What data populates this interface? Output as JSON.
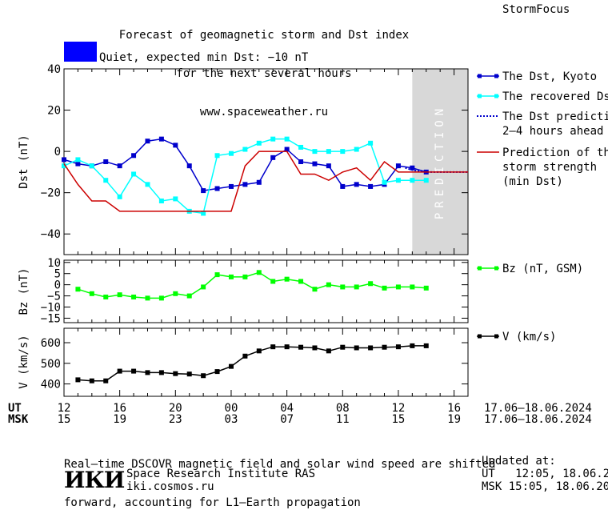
{
  "header": {
    "title_lines": [
      "Forecast of geomagnetic storm and Dst index",
      "for the next several hours",
      "www.spaceweather.ru"
    ],
    "brand": "StormFocus",
    "status_label": "Quiet, expected min Dst: −10 nT",
    "status_color": "#0000ff"
  },
  "chart_data": [
    {
      "type": "line",
      "ylabel": "Dst (nT)",
      "ylim": [
        -50,
        40
      ],
      "yticks": [
        -40,
        -20,
        0,
        20,
        40
      ],
      "ytick_labels": [
        "−40",
        "−20",
        "0",
        "20",
        "40"
      ],
      "xlim": [
        12,
        41
      ],
      "prediction_band": {
        "x": [
          37,
          41
        ],
        "label": "PREDICTION",
        "color": "#d8d8d8"
      },
      "series": [
        {
          "name": "The Dst, Kyoto",
          "color": "#0000cc",
          "marker": "square",
          "x": [
            12,
            13,
            14,
            15,
            16,
            17,
            18,
            19,
            20,
            21,
            22,
            23,
            24,
            25,
            26,
            27,
            28,
            29,
            30,
            31,
            32,
            33,
            34,
            35,
            36,
            37,
            38
          ],
          "y": [
            -4,
            -6,
            -7,
            -5,
            -7,
            -2,
            5,
            6,
            3,
            -7,
            -19,
            -18,
            -17,
            -16,
            -15,
            -3,
            1,
            -5,
            -6,
            -7,
            -17,
            -16,
            -17,
            -16,
            -7,
            -8,
            -10
          ]
        },
        {
          "name": "The recovered Dst",
          "color": "#00ffff",
          "marker": "square",
          "x": [
            12,
            13,
            14,
            15,
            16,
            17,
            18,
            19,
            20,
            21,
            22,
            23,
            24,
            25,
            26,
            27,
            28,
            29,
            30,
            31,
            32,
            33,
            34,
            35,
            36,
            37,
            38
          ],
          "y": [
            -7,
            -4,
            -7,
            -14,
            -22,
            -11,
            -16,
            -24,
            -23,
            -29,
            -30,
            -2,
            -1,
            1,
            4,
            6,
            6,
            2,
            0,
            0,
            0,
            1,
            4,
            -15,
            -14,
            -14,
            -14
          ]
        },
        {
          "name": "The Dst prediction 2–4 hours ahead",
          "color": "#0000cc",
          "style": "dotted",
          "x": [
            36.5,
            37,
            38,
            39,
            40,
            41
          ],
          "y": [
            -8,
            -9,
            -10,
            -10,
            -10,
            -10
          ]
        },
        {
          "name": "Prediction of the storm strength (min Dst)",
          "color": "#cc0000",
          "x": [
            12,
            13,
            14,
            15,
            16,
            17,
            18,
            19,
            20,
            21,
            22,
            23,
            24,
            25,
            26,
            27,
            28,
            29,
            30,
            31,
            32,
            33,
            34,
            35,
            36,
            37,
            38,
            39,
            40,
            41
          ],
          "y": [
            -6,
            -16,
            -24,
            -24,
            -29,
            -29,
            -29,
            -29,
            -29,
            -29,
            -29,
            -29,
            -29,
            -7,
            0,
            0,
            0,
            -11,
            -11,
            -14,
            -10,
            -8,
            -14,
            -5,
            -10,
            -10,
            -10,
            -10,
            -10,
            -10
          ]
        }
      ],
      "legend": [
        {
          "lines": [
            "The Dst, Kyoto"
          ]
        },
        {
          "lines": [
            "The recovered Dst"
          ]
        },
        {
          "lines": [
            "The Dst prediction",
            "2–4 hours ahead"
          ]
        },
        {
          "lines": [
            "Prediction of the",
            "storm strength",
            "(min Dst)"
          ]
        }
      ]
    },
    {
      "type": "line",
      "ylabel": "Bz (nT)",
      "ylim": [
        -17,
        11
      ],
      "yticks": [
        -15,
        -10,
        -5,
        0,
        5,
        10
      ],
      "ytick_labels": [
        "−15",
        "−10",
        "−5",
        "0",
        "5",
        "10"
      ],
      "xlim": [
        12,
        41
      ],
      "series": [
        {
          "name": "Bz (nT, GSM)",
          "color": "#00ff00",
          "marker": "square",
          "x": [
            13,
            14,
            15,
            16,
            17,
            18,
            19,
            20,
            21,
            22,
            23,
            24,
            25,
            26,
            27,
            28,
            29,
            30,
            31,
            32,
            33,
            34,
            35,
            36,
            37,
            38
          ],
          "y": [
            -2,
            -4,
            -5.5,
            -4.5,
            -5.5,
            -6,
            -6,
            -4,
            -5,
            -1,
            4.5,
            3.5,
            3.5,
            5.5,
            1.5,
            2.5,
            1.5,
            -2,
            0,
            -1,
            -1,
            0.5,
            -1.5,
            -1,
            -1,
            -1.5
          ]
        }
      ],
      "legend": [
        {
          "lines": [
            "Bz (nT, GSM)"
          ]
        }
      ]
    },
    {
      "type": "line",
      "ylabel": "V (km/s)",
      "ylim": [
        340,
        670
      ],
      "yticks": [
        400,
        500,
        600
      ],
      "ytick_labels": [
        "400",
        "500",
        "600"
      ],
      "xlim": [
        12,
        41
      ],
      "series": [
        {
          "name": "V (km/s)",
          "color": "#000000",
          "marker": "square",
          "x": [
            13,
            14,
            15,
            16,
            17,
            18,
            19,
            20,
            21,
            22,
            23,
            24,
            25,
            26,
            27,
            28,
            29,
            30,
            31,
            32,
            33,
            34,
            35,
            36,
            37,
            38
          ],
          "y": [
            420,
            415,
            415,
            462,
            462,
            455,
            455,
            450,
            448,
            440,
            460,
            485,
            535,
            560,
            580,
            580,
            578,
            575,
            560,
            578,
            575,
            575,
            578,
            580,
            585,
            585
          ]
        }
      ],
      "legend": [
        {
          "lines": [
            "V (km/s)"
          ]
        }
      ]
    }
  ],
  "time_axis": {
    "ut_label": "UT",
    "msk_label": "MSK",
    "ticks_x": [
      12,
      16,
      20,
      24,
      28,
      32,
      36,
      40
    ],
    "ut_ticks": [
      "12",
      "16",
      "20",
      "00",
      "04",
      "08",
      "12",
      "16"
    ],
    "msk_ticks": [
      "15",
      "19",
      "23",
      "03",
      "07",
      "11",
      "15",
      "19"
    ],
    "ut_range": "17.06–18.06.2024",
    "msk_range": "17.06–18.06.2024"
  },
  "footer": {
    "note_lines": [
      "Real–time DSCOVR magnetic field and solar wind speed are shifted",
      "forward, accounting for L1–Earth propagation"
    ],
    "logo": "ИКИ",
    "institute": "Space Research Institute RAS",
    "site": "iki.cosmos.ru",
    "updated_label": "Updated at:",
    "updated_ut": "UT   12:05, 18.06.2024",
    "updated_msk": "MSK 15:05, 18.06.2024"
  }
}
